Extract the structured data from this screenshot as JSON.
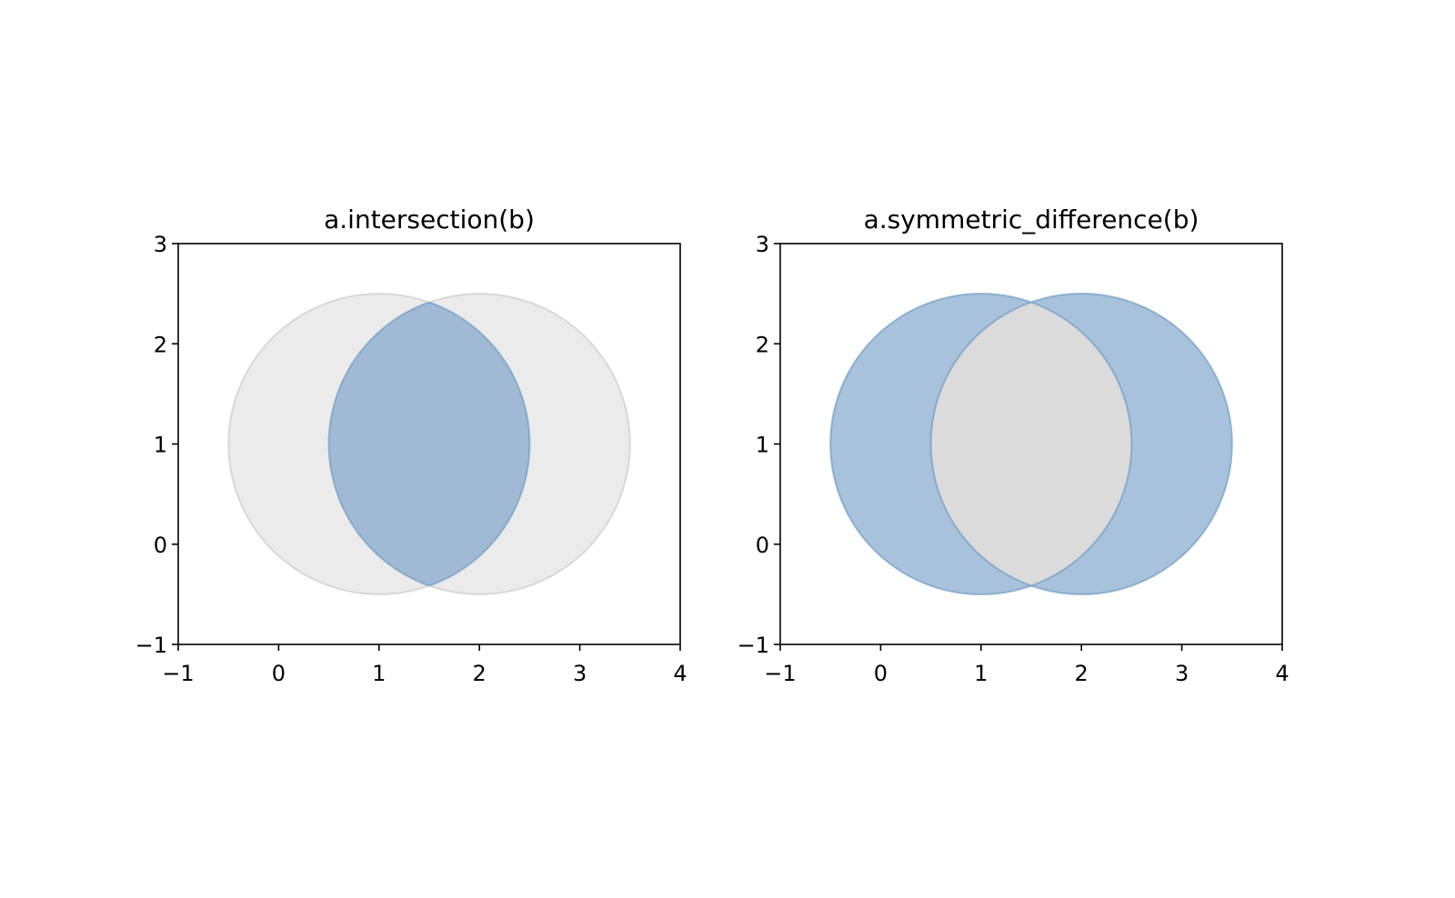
{
  "chart_data": [
    {
      "type": "venn",
      "title": "a.intersection(b)",
      "operation": "intersection",
      "circles": [
        {
          "cx": 1,
          "cy": 1,
          "r": 1.5
        },
        {
          "cx": 2,
          "cy": 1,
          "r": 1.5
        }
      ],
      "base_color": "#999999",
      "result_color": "#6699cc",
      "xlim": [
        -1,
        4
      ],
      "ylim": [
        -1,
        3
      ],
      "xticks": [
        {
          "value": -1,
          "label": "−1"
        },
        0,
        1,
        2,
        3,
        4
      ],
      "yticks": [
        {
          "value": -1,
          "label": "−1"
        },
        0,
        1,
        2,
        3
      ]
    },
    {
      "type": "venn",
      "title": "a.symmetric_difference(b)",
      "operation": "symmetric_difference",
      "circles": [
        {
          "cx": 1,
          "cy": 1,
          "r": 1.5
        },
        {
          "cx": 2,
          "cy": 1,
          "r": 1.5
        }
      ],
      "base_color": "#999999",
      "result_color": "#6699cc",
      "xlim": [
        -1,
        4
      ],
      "ylim": [
        -1,
        3
      ],
      "xticks": [
        {
          "value": -1,
          "label": "−1"
        },
        0,
        1,
        2,
        3,
        4
      ],
      "yticks": [
        {
          "value": -1,
          "label": "−1"
        },
        0,
        1,
        2,
        3
      ]
    }
  ]
}
